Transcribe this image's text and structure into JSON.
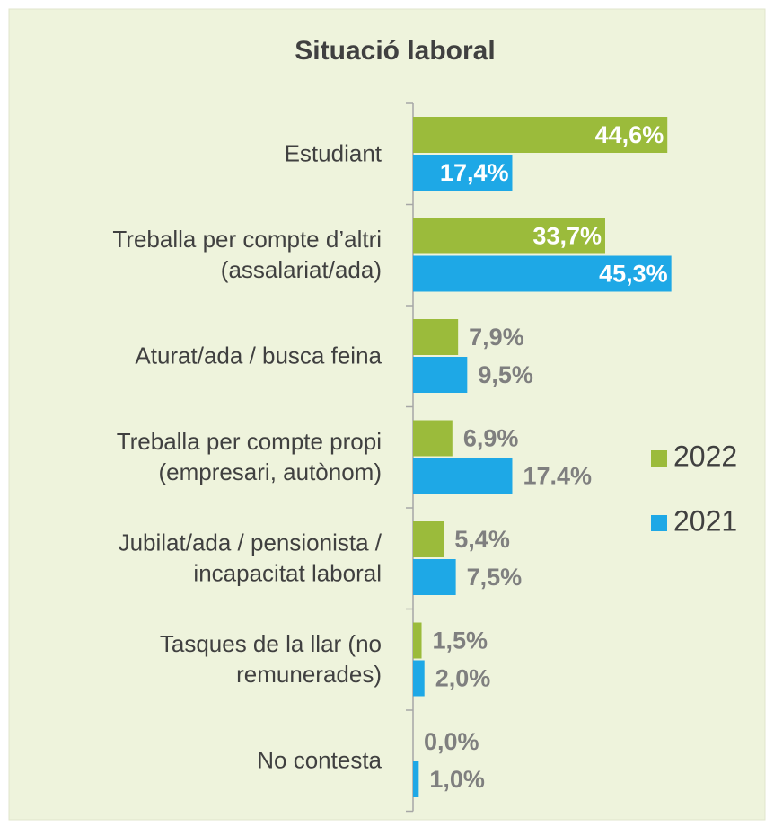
{
  "chart_data": {
    "type": "hbar",
    "title": "Situació laboral",
    "categories": [
      [
        "Estudiant"
      ],
      [
        "Treballa per compte d’altri",
        "(assalariat/ada)"
      ],
      [
        "Aturat/ada / busca feina"
      ],
      [
        "Treballa per compte propi",
        "(empresari, autònom)"
      ],
      [
        "Jubilat/ada / pensionista /",
        "incapacitat laboral"
      ],
      [
        "Tasques de la llar (no",
        "remunerades)"
      ],
      [
        "No contesta"
      ]
    ],
    "series": [
      {
        "name": "2022",
        "color": "#9bbb3b",
        "values": [
          44.6,
          33.7,
          7.9,
          6.9,
          5.4,
          1.5,
          0.0
        ],
        "value_labels": [
          "44,6%",
          "33,7%",
          "7,9%",
          "6,9%",
          "5,4%",
          "1,5%",
          "0,0%"
        ]
      },
      {
        "name": "2021",
        "color": "#1ea8e6",
        "values": [
          17.4,
          45.3,
          9.5,
          17.4,
          7.5,
          2.0,
          1.0
        ],
        "value_labels": [
          "17,4%",
          "45,3%",
          "9,5%",
          "17.4%",
          "7,5%",
          "2,0%",
          "1,0%"
        ]
      }
    ],
    "legend": "right"
  }
}
